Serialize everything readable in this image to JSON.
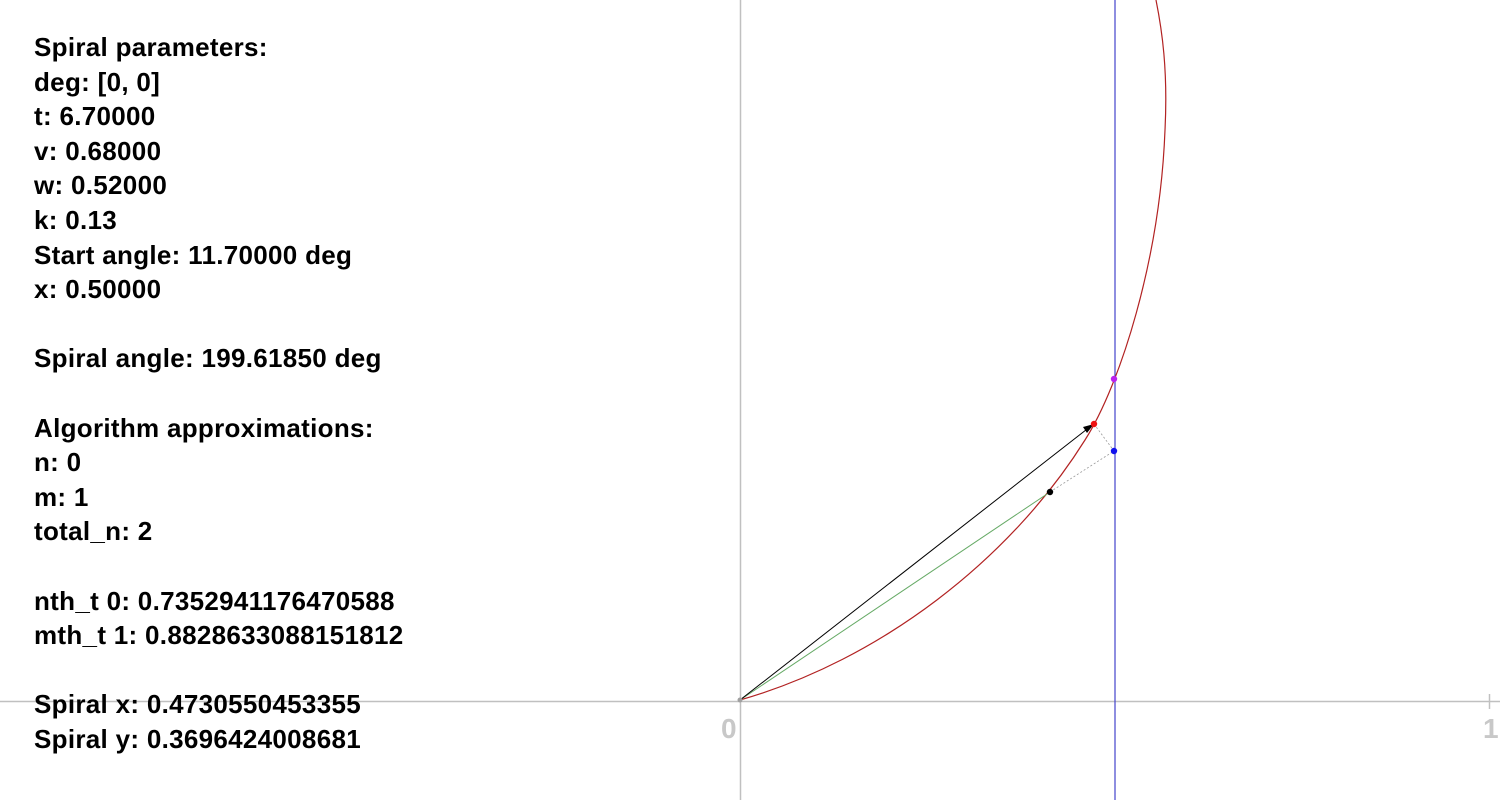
{
  "panel": {
    "spiral_parameters_heading": "Spiral parameters:",
    "deg": "deg: [0, 0]",
    "t": "t: 6.70000",
    "v": "v: 0.68000",
    "w": "w: 0.52000",
    "k": "k: 0.13",
    "start_angle": "Start angle: 11.70000 deg",
    "x": "x: 0.50000",
    "spiral_angle": "Spiral angle: 199.61850 deg",
    "algorithm_heading": "Algorithm approximations:",
    "n": "n: 0",
    "m": "m: 1",
    "total_n": "total_n: 2",
    "nth_t": "nth_t 0: 0.7352941176470588",
    "mth_t": "mth_t 1: 0.8828633088151812",
    "spiral_x": "Spiral x: 0.4730550453355",
    "spiral_y": "Spiral y: 0.3696424008681"
  },
  "axis": {
    "label_zero": "0",
    "label_one": "1"
  },
  "colors": {
    "axis": "#c0c0c0",
    "spiral": "#b22222",
    "vertical_line": "#4444cc",
    "arrow": "#000000",
    "approx_line": "#66aa66",
    "point_red": "#ee1111",
    "point_blue": "#1111ee",
    "point_purple": "#bb22ee",
    "point_black": "#000000"
  }
}
